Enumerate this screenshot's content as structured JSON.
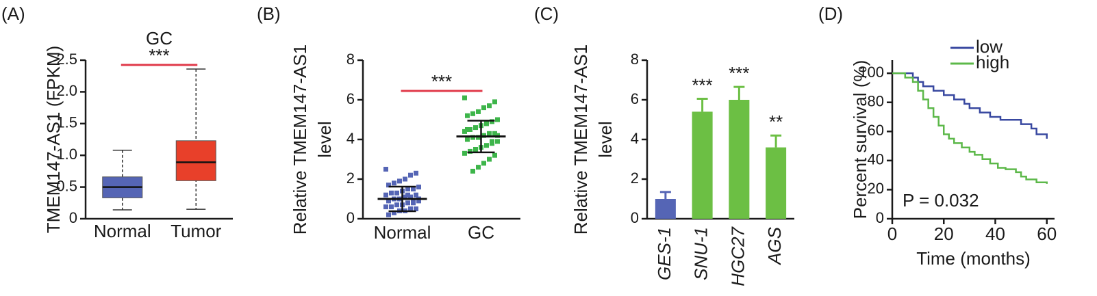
{
  "chart_data": [
    {
      "type": "box",
      "panel_label": "(A)",
      "title": "GC",
      "ylabel": [
        "TMEM147-AS1 (FPKM)"
      ],
      "categories": [
        "Normal",
        "Tumor"
      ],
      "boxes": [
        {
          "min": 0.14,
          "q1": 0.33,
          "median": 0.5,
          "q3": 0.66,
          "max": 1.08
        },
        {
          "min": 0.15,
          "q1": 0.6,
          "median": 0.89,
          "q3": 1.23,
          "max": 2.36
        }
      ],
      "colors": [
        "#5565b5",
        "#e8402a"
      ],
      "significance": {
        "label": "***",
        "color": "#e0394a"
      },
      "ylim": [
        0,
        2.5
      ],
      "yticks": [
        0,
        0.5,
        {
          "value": 1,
          "label": "1.0"
        },
        1.5,
        {
          "value": 2,
          "label": "2.0"
        },
        2.5
      ]
    },
    {
      "type": "dot",
      "panel_label": "(B)",
      "ylabel": [
        "Relative TMEM147-AS1",
        "level"
      ],
      "categories": [
        "Normal",
        "GC"
      ],
      "groups": [
        {
          "color": "#5565b5",
          "mean": 1.0,
          "sd": 0.62,
          "values": [
            2.5,
            2.3,
            2.2,
            2.0,
            1.9,
            1.8,
            1.7,
            1.6,
            1.5,
            1.5,
            1.4,
            1.3,
            1.3,
            1.2,
            1.2,
            1.1,
            1.1,
            1.0,
            1.0,
            0.9,
            0.9,
            0.8,
            0.8,
            0.7,
            0.7,
            0.6,
            0.6,
            0.5,
            0.5,
            0.4,
            0.4,
            0.3,
            0.2,
            1.0,
            0.9,
            1.2
          ]
        },
        {
          "color": "#3db54a",
          "mean": 4.15,
          "sd": 0.8,
          "values": [
            6.1,
            5.9,
            5.7,
            5.6,
            5.4,
            5.3,
            5.2,
            5.0,
            4.9,
            4.8,
            4.7,
            4.6,
            4.5,
            4.4,
            4.3,
            4.3,
            4.2,
            4.1,
            4.1,
            4.0,
            3.9,
            3.8,
            3.7,
            3.6,
            3.5,
            3.4,
            3.3,
            3.2,
            3.0,
            2.8,
            2.6,
            2.4,
            4.5,
            4.2,
            3.9,
            4.8
          ]
        }
      ],
      "significance": {
        "label": "***",
        "color": "#e0394a"
      },
      "ylim": [
        0,
        8
      ],
      "yticks": [
        0,
        2,
        4,
        6,
        8
      ]
    },
    {
      "type": "bar",
      "panel_label": "(C)",
      "ylabel": [
        "Relative TMEM147-AS1",
        "level"
      ],
      "categories": [
        "GES-1",
        "SNU-1",
        "HGC27",
        "AGS"
      ],
      "values": [
        1.0,
        5.4,
        6.0,
        3.6
      ],
      "errors": [
        0.35,
        0.65,
        0.65,
        0.6
      ],
      "colors": [
        "#5565b5",
        "#6cbf44",
        "#6cbf44",
        "#6cbf44"
      ],
      "annotations": [
        null,
        "***",
        "***",
        "**"
      ],
      "ylim": [
        0,
        8
      ],
      "yticks": [
        0,
        2,
        4,
        6,
        8
      ]
    },
    {
      "type": "step",
      "panel_label": "(D)",
      "ylabel": [
        "Percent survival (%)"
      ],
      "xlabel": "Time (months)",
      "annotation": "P = 0.032",
      "series": [
        {
          "name": "low",
          "color": "#3848a0",
          "x": [
            0,
            8,
            10,
            12,
            16,
            20,
            24,
            28,
            30,
            34,
            38,
            42,
            50,
            54,
            56,
            60
          ],
          "values": [
            100,
            97,
            94,
            91,
            88,
            85,
            82,
            79,
            76,
            73,
            70,
            68,
            65,
            62,
            58,
            55
          ]
        },
        {
          "name": "high",
          "color": "#5cb849",
          "x": [
            0,
            5,
            8,
            10,
            12,
            14,
            16,
            18,
            20,
            22,
            24,
            27,
            30,
            32,
            35,
            38,
            41,
            44,
            48,
            50,
            52,
            56,
            60
          ],
          "values": [
            100,
            97,
            94,
            88,
            82,
            76,
            70,
            64,
            58,
            55,
            52,
            49,
            46,
            44,
            41,
            38,
            35,
            34,
            32,
            29,
            27,
            25,
            24
          ]
        }
      ],
      "xlim": [
        0,
        63
      ],
      "xticks": [
        0,
        20,
        40,
        60
      ],
      "ylim": [
        0,
        109
      ],
      "yticks": [
        0,
        20,
        40,
        60,
        80,
        100
      ]
    }
  ]
}
